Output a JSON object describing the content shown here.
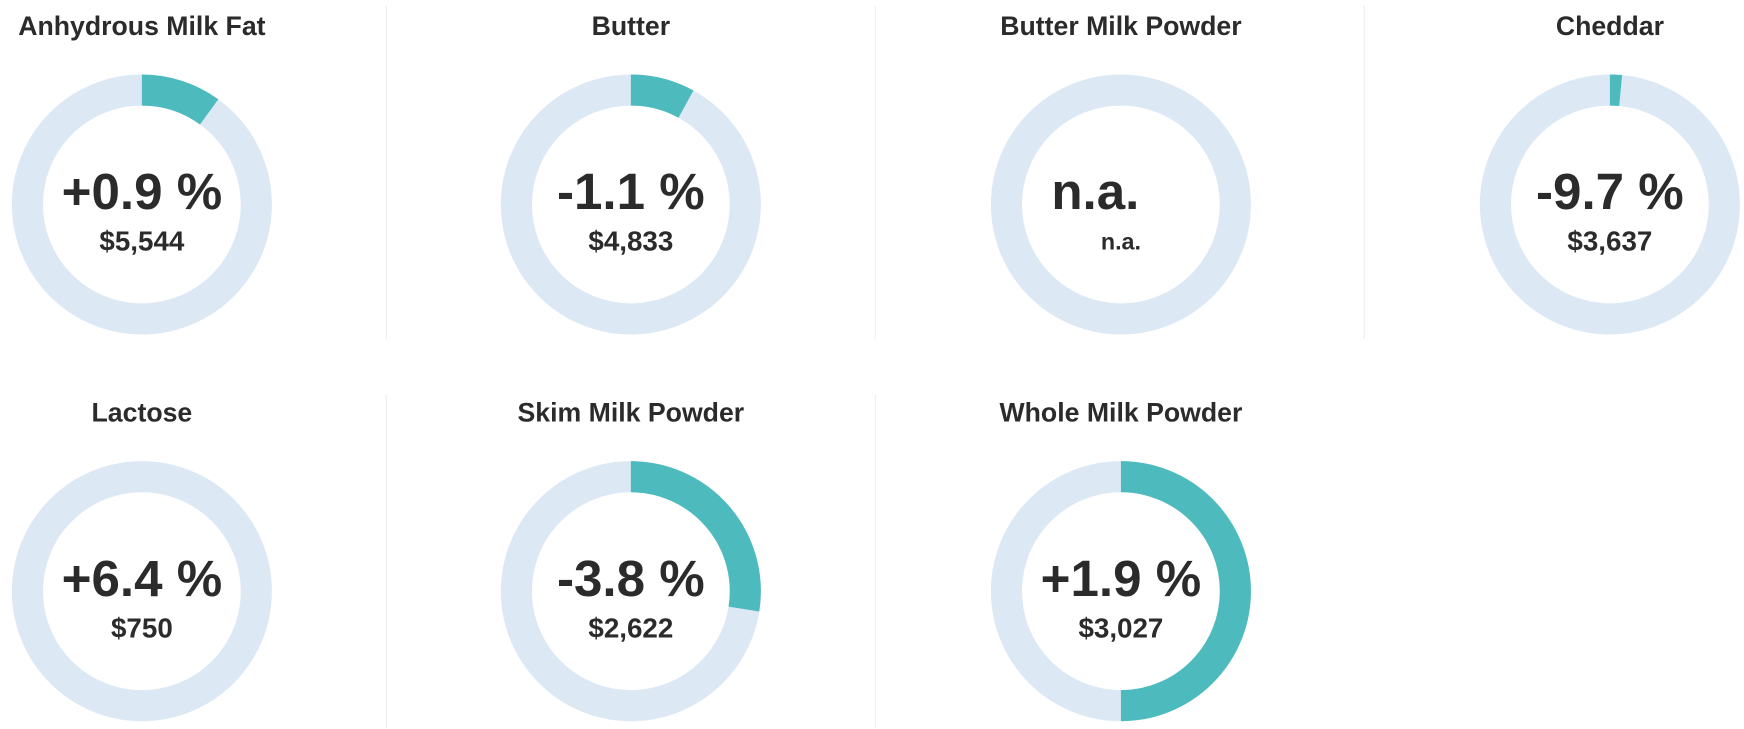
{
  "chart_data": [
    {
      "type": "donut",
      "title": "Anhydrous Milk Fat",
      "values": [
        10
      ],
      "ylim": [
        0,
        100
      ],
      "change_label": "+0.9 %",
      "price_label": "$5,544",
      "color": "#4dbbbd",
      "track_color": "#dde8f5"
    },
    {
      "type": "donut",
      "title": "Butter",
      "values": [
        8
      ],
      "ylim": [
        0,
        100
      ],
      "change_label": "-1.1 %",
      "price_label": "$4,833",
      "color": "#4dbbbd",
      "track_color": "#dde8f5"
    },
    {
      "type": "donut",
      "title": "Butter Milk Powder",
      "values": [
        null
      ],
      "ylim": [
        0,
        100
      ],
      "change_label": "n.a.",
      "price_label": "n.a.",
      "color": "#4dbbbd",
      "track_color": "#dde8f5"
    },
    {
      "type": "donut",
      "title": "Cheddar",
      "values": [
        1.5
      ],
      "ylim": [
        0,
        100
      ],
      "change_label": "-9.7 %",
      "price_label": "$3,637",
      "color": "#4dbbbd",
      "track_color": "#dde8f5"
    },
    {
      "type": "donut",
      "title": "Lactose",
      "values": [
        0
      ],
      "ylim": [
        0,
        100
      ],
      "change_label": "+6.4 %",
      "price_label": "$750",
      "color": "#4dbbbd",
      "track_color": "#dde8f5"
    },
    {
      "type": "donut",
      "title": "Skim Milk Powder",
      "values": [
        27.5
      ],
      "ylim": [
        0,
        100
      ],
      "change_label": "-3.8 %",
      "price_label": "$2,622",
      "color": "#4dbbbd",
      "track_color": "#dde8f5"
    },
    {
      "type": "donut",
      "title": "Whole Milk Powder",
      "values": [
        50
      ],
      "ylim": [
        0,
        100
      ],
      "change_label": "+1.9 %",
      "price_label": "$3,027",
      "color": "#4dbbbd",
      "track_color": "#dde8f5"
    }
  ]
}
